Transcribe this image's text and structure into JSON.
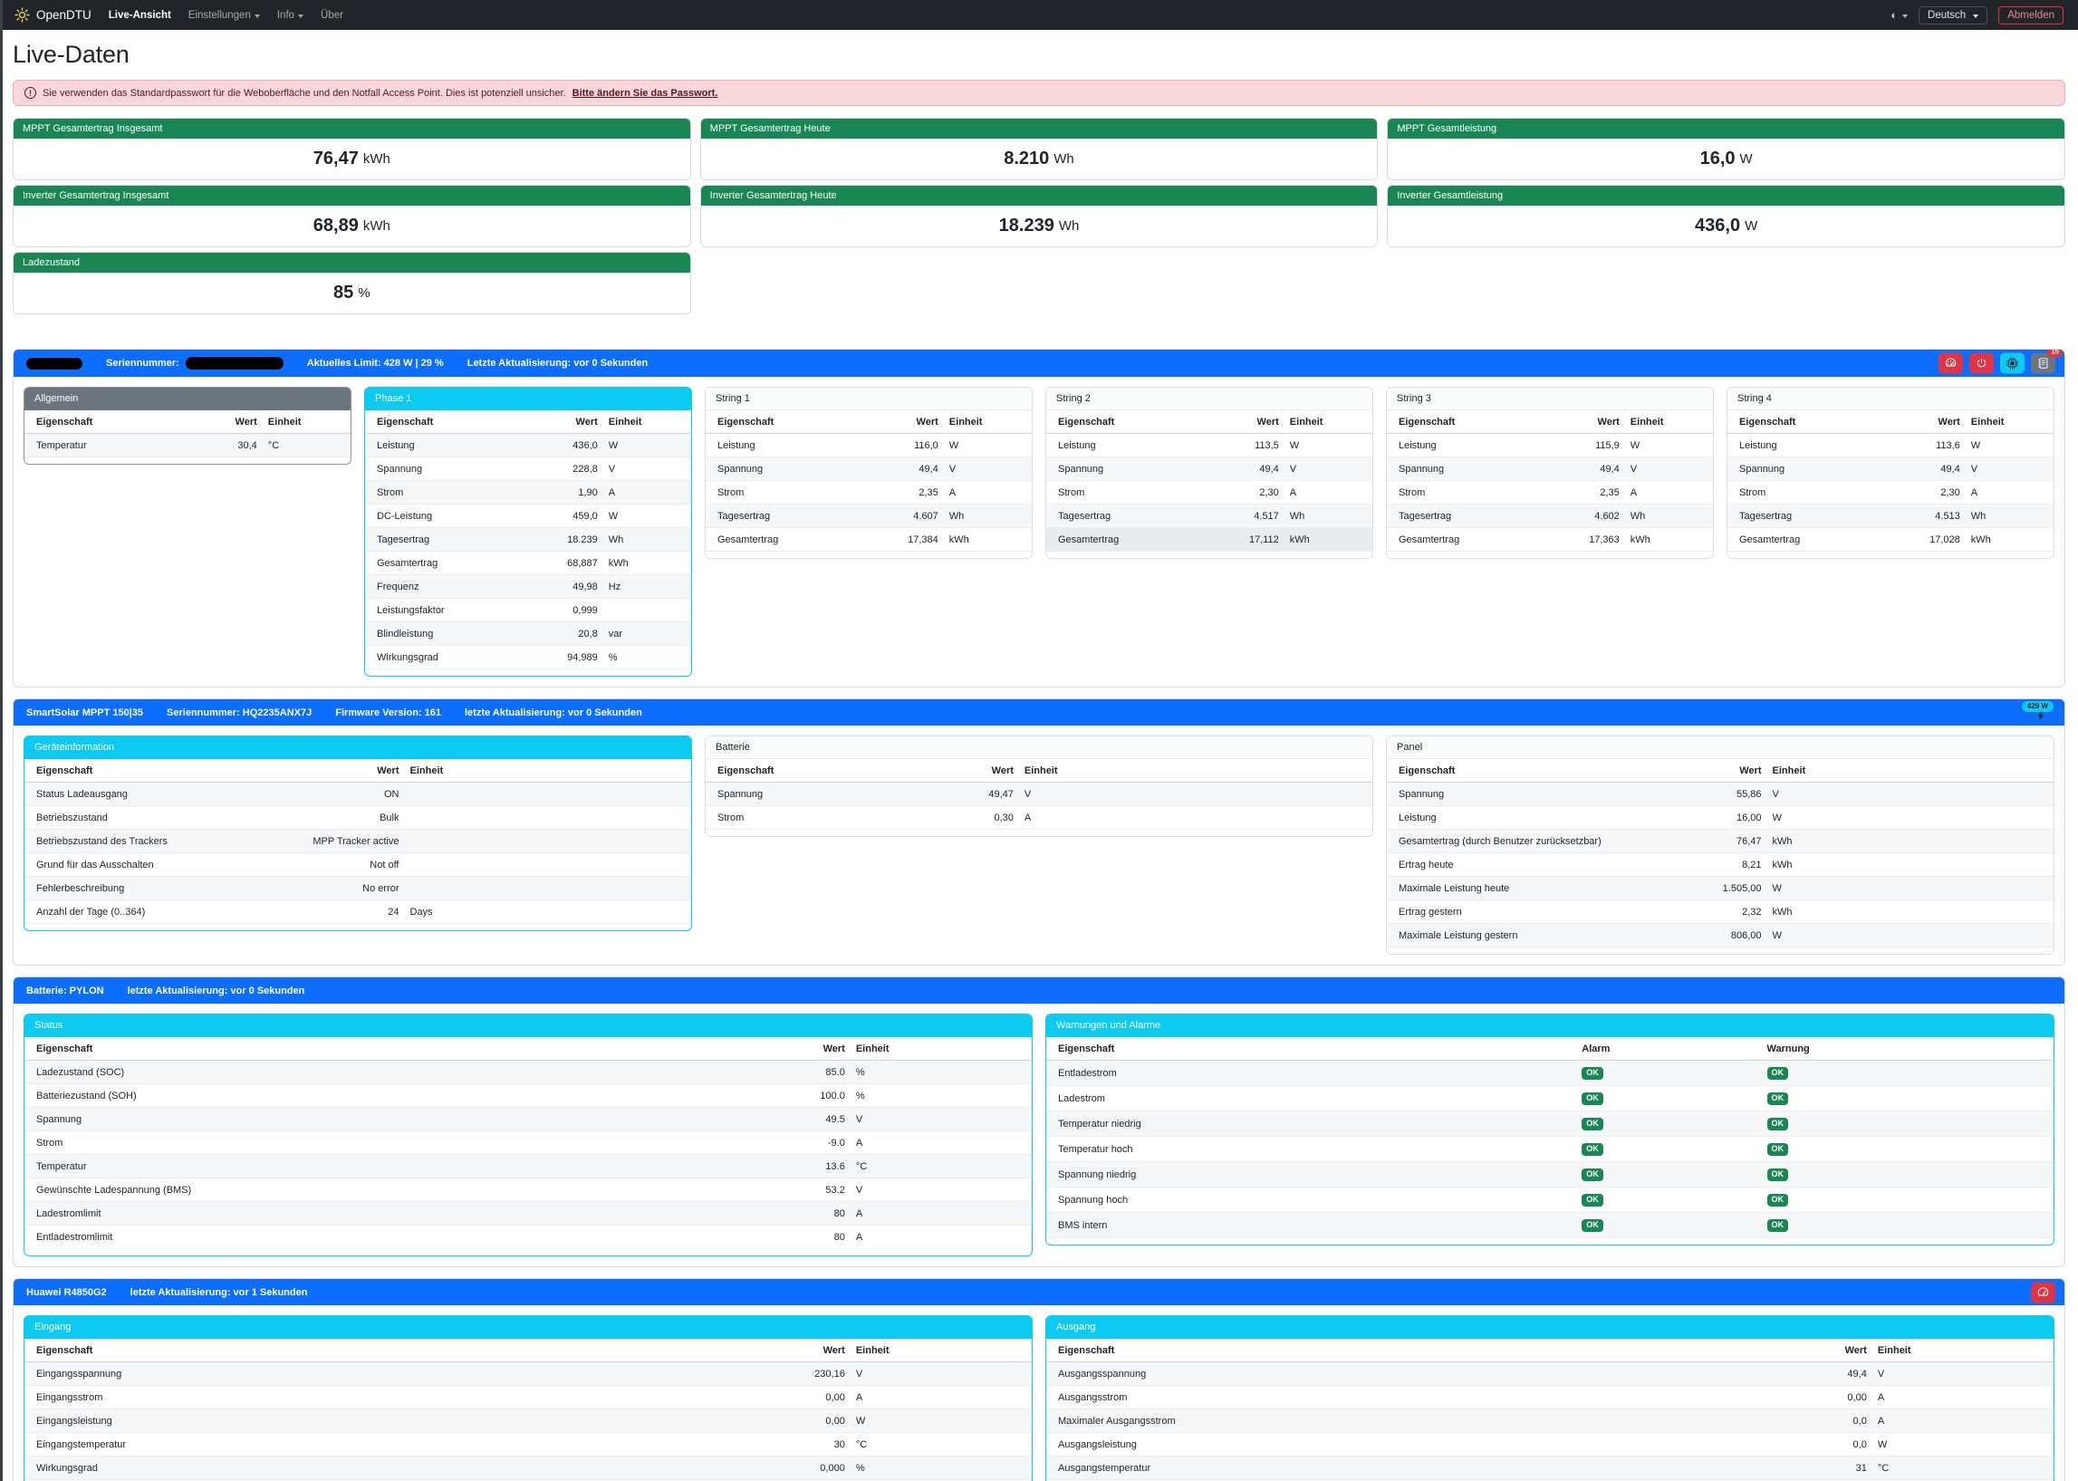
{
  "colors": {
    "primary": "#0d6efd",
    "info": "#0dcaf0",
    "success": "#198754",
    "danger": "#dc3545",
    "secondary": "#6c757d",
    "navbar_bg": "#212529",
    "alert_bg": "#f8d7da"
  },
  "navbar": {
    "brand": "OpenDTU",
    "items": [
      {
        "label": "Live-Ansicht"
      },
      {
        "label": "Einstellungen"
      },
      {
        "label": "Info"
      },
      {
        "label": "Über"
      }
    ],
    "language": "Deutsch",
    "logout_label": "Abmelden"
  },
  "page_title": "Live-Daten",
  "alert": {
    "text": "Sie verwenden das Standardpasswort für die Weboberfläche und den Notfall Access Point. Dies ist potenziell unsicher.",
    "link_text": "Bitte ändern Sie das Passwort."
  },
  "stats": {
    "cards": [
      {
        "title": "MPPT Gesamtertrag Insgesamt",
        "value": "76,47",
        "unit": "kWh"
      },
      {
        "title": "MPPT Gesamtertrag Heute",
        "value": "8.210",
        "unit": "Wh"
      },
      {
        "title": "MPPT Gesamtleistung",
        "value": "16,0",
        "unit": "W"
      },
      {
        "title": "Inverter Gesamtertrag Insgesamt",
        "value": "68,89",
        "unit": "kWh"
      },
      {
        "title": "Inverter Gesamtertrag Heute",
        "value": "18.239",
        "unit": "Wh"
      },
      {
        "title": "Inverter Gesamtleistung",
        "value": "436,0",
        "unit": "W"
      },
      {
        "title": "Ladezustand",
        "value": "85",
        "unit": "%"
      }
    ]
  },
  "inverter": {
    "header": {
      "serial_label": "Seriennummer:",
      "limit": "Aktuelles Limit: 428 W | 29 %",
      "updated": "Letzte Aktualisierung: vor 0 Sekunden",
      "log_count": "15"
    },
    "cards": {
      "allgemein": {
        "title": "Allgemein",
        "columns": [
          "Eigenschaft",
          "Wert",
          "Einheit"
        ],
        "stripe": "odd",
        "rows": [
          [
            "Temperatur",
            "30,4",
            "°C"
          ]
        ]
      },
      "phase1": {
        "title": "Phase 1",
        "columns": [
          "Eigenschaft",
          "Wert",
          "Einheit"
        ],
        "stripe": "odd",
        "rows": [
          [
            "Leistung",
            "436,0",
            "W"
          ],
          [
            "Spannung",
            "228,8",
            "V"
          ],
          [
            "Strom",
            "1,90",
            "A"
          ],
          [
            "DC-Leistung",
            "459,0",
            "W"
          ],
          [
            "Tagesertrag",
            "18.239",
            "Wh"
          ],
          [
            "Gesamtertrag",
            "68,887",
            "kWh"
          ],
          [
            "Frequenz",
            "49,98",
            "Hz"
          ],
          [
            "Leistungsfaktor",
            "0,999",
            ""
          ],
          [
            "Blindleistung",
            "20,8",
            "var"
          ],
          [
            "Wirkungsgrad",
            "94,989",
            "%"
          ]
        ]
      },
      "string1": {
        "title": "String 1",
        "columns": [
          "Eigenschaft",
          "Wert",
          "Einheit"
        ],
        "stripe": "even",
        "rows": [
          [
            "Leistung",
            "116,0",
            "W"
          ],
          [
            "Spannung",
            "49,4",
            "V"
          ],
          [
            "Strom",
            "2,35",
            "A"
          ],
          [
            "Tagesertrag",
            "4.607",
            "Wh"
          ],
          [
            "Gesamtertrag",
            "17,384",
            "kWh"
          ]
        ]
      },
      "string2": {
        "title": "String 2",
        "columns": [
          "Eigenschaft",
          "Wert",
          "Einheit"
        ],
        "stripe": "even",
        "hover_row": 4,
        "rows": [
          [
            "Leistung",
            "113,5",
            "W"
          ],
          [
            "Spannung",
            "49,4",
            "V"
          ],
          [
            "Strom",
            "2,30",
            "A"
          ],
          [
            "Tagesertrag",
            "4.517",
            "Wh"
          ],
          [
            "Gesamtertrag",
            "17,112",
            "kWh"
          ]
        ]
      },
      "string3": {
        "title": "String 3",
        "columns": [
          "Eigenschaft",
          "Wert",
          "Einheit"
        ],
        "stripe": "even",
        "rows": [
          [
            "Leistung",
            "115,9",
            "W"
          ],
          [
            "Spannung",
            "49,4",
            "V"
          ],
          [
            "Strom",
            "2,35",
            "A"
          ],
          [
            "Tagesertrag",
            "4.602",
            "Wh"
          ],
          [
            "Gesamtertrag",
            "17,363",
            "kWh"
          ]
        ]
      },
      "string4": {
        "title": "String 4",
        "columns": [
          "Eigenschaft",
          "Wert",
          "Einheit"
        ],
        "stripe": "even",
        "rows": [
          [
            "Leistung",
            "113,6",
            "W"
          ],
          [
            "Spannung",
            "49,4",
            "V"
          ],
          [
            "Strom",
            "2,30",
            "A"
          ],
          [
            "Tagesertrag",
            "4.513",
            "Wh"
          ],
          [
            "Gesamtertrag",
            "17,028",
            "kWh"
          ]
        ]
      }
    }
  },
  "mppt": {
    "header": {
      "name": "SmartSolar MPPT 150|35",
      "serial": "Seriennummer: HQ2235ANX7J",
      "firmware": "Firmware Version: 161",
      "updated": "letzte Aktualisierung: vor 0 Sekunden",
      "power_badge": "429 W"
    },
    "cards": {
      "geraeteinformation": {
        "title": "Geräteinformation",
        "columns": [
          "Eigenschaft",
          "Wert",
          "Einheit"
        ],
        "stripe": "odd",
        "rows": [
          [
            "Status Ladeausgang",
            "ON",
            ""
          ],
          [
            "Betriebszustand",
            "Bulk",
            ""
          ],
          [
            "Betriebszustand des Trackers",
            "MPP Tracker active",
            ""
          ],
          [
            "Grund für das Ausschalten",
            "Not off",
            ""
          ],
          [
            "Fehlerbeschreibung",
            "No error",
            ""
          ],
          [
            "Anzahl der Tage (0..364)",
            "24",
            "Days"
          ]
        ]
      },
      "batterie": {
        "title": "Batterie",
        "columns": [
          "Eigenschaft",
          "Wert",
          "Einheit"
        ],
        "stripe": "odd",
        "rows": [
          [
            "Spannung",
            "49,47",
            "V"
          ],
          [
            "Strom",
            "0,30",
            "A"
          ]
        ]
      },
      "panel": {
        "title": "Panel",
        "columns": [
          "Eigenschaft",
          "Wert",
          "Einheit"
        ],
        "stripe": "odd",
        "rows": [
          [
            "Spannung",
            "55,86",
            "V"
          ],
          [
            "Leistung",
            "16,00",
            "W"
          ],
          [
            "Gesamtertrag (durch Benutzer zurücksetzbar)",
            "76,47",
            "kWh"
          ],
          [
            "Ertrag heute",
            "8,21",
            "kWh"
          ],
          [
            "Maximale Leistung heute",
            "1.505,00",
            "W"
          ],
          [
            "Ertrag gestern",
            "2,32",
            "kWh"
          ],
          [
            "Maximale Leistung gestern",
            "806,00",
            "W"
          ]
        ]
      }
    }
  },
  "pylon": {
    "header": {
      "name": "Batterie: PYLON",
      "updated": "letzte Aktualisierung: vor 0 Sekunden"
    },
    "cards": {
      "status": {
        "title": "Status",
        "columns": [
          "Eigenschaft",
          "Wert",
          "Einheit"
        ],
        "stripe": "odd",
        "rows": [
          [
            "Ladezustand (SOC)",
            "85.0",
            "%"
          ],
          [
            "Batteriezustand (SOH)",
            "100.0",
            "%"
          ],
          [
            "Spannung",
            "49.5",
            "V"
          ],
          [
            "Strom",
            "-9.0",
            "A"
          ],
          [
            "Temperatur",
            "13.6",
            "°C"
          ],
          [
            "Gewünschte Ladespannung (BMS)",
            "53.2",
            "V"
          ],
          [
            "Ladestromlimit",
            "80",
            "A"
          ],
          [
            "Entladestromlimit",
            "80",
            "A"
          ]
        ]
      },
      "warnungen": {
        "title": "Warnungen und Alarme",
        "columns": [
          "Eigenschaft",
          "Alarm",
          "Warnung"
        ],
        "stripe": "odd",
        "badges": true,
        "rows": [
          [
            "Entladestrom",
            "OK",
            "OK"
          ],
          [
            "Ladestrom",
            "OK",
            "OK"
          ],
          [
            "Temperatur niedrig",
            "OK",
            "OK"
          ],
          [
            "Temperatur hoch",
            "OK",
            "OK"
          ],
          [
            "Spannung niedrig",
            "OK",
            "OK"
          ],
          [
            "Spannung hoch",
            "OK",
            "OK"
          ],
          [
            "BMS intern",
            "OK",
            "OK"
          ]
        ]
      }
    }
  },
  "huawei": {
    "header": {
      "name": "Huawei R4850G2",
      "updated": "letzte Aktualisierung: vor 1 Sekunden"
    },
    "cards": {
      "eingang": {
        "title": "Eingang",
        "columns": [
          "Eigenschaft",
          "Wert",
          "Einheit"
        ],
        "stripe": "odd",
        "rows": [
          [
            "Eingangsspannung",
            "230,16",
            "V"
          ],
          [
            "Eingangsstrom",
            "0,00",
            "A"
          ],
          [
            "Eingangsleistung",
            "0,00",
            "W"
          ],
          [
            "Eingangstemperatur",
            "30",
            "°C"
          ],
          [
            "Wirkungsgrad",
            "0,000",
            "%"
          ]
        ]
      },
      "ausgang": {
        "title": "Ausgang",
        "columns": [
          "Eigenschaft",
          "Wert",
          "Einheit"
        ],
        "stripe": "odd",
        "rows": [
          [
            "Ausgangsspannung",
            "49,4",
            "V"
          ],
          [
            "Ausgangsstrom",
            "0,00",
            "A"
          ],
          [
            "Maximaler Ausgangsstrom",
            "0,0",
            "A"
          ],
          [
            "Ausgangsleistung",
            "0,0",
            "W"
          ],
          [
            "Ausgangstemperatur",
            "31",
            "°C"
          ]
        ]
      }
    }
  }
}
